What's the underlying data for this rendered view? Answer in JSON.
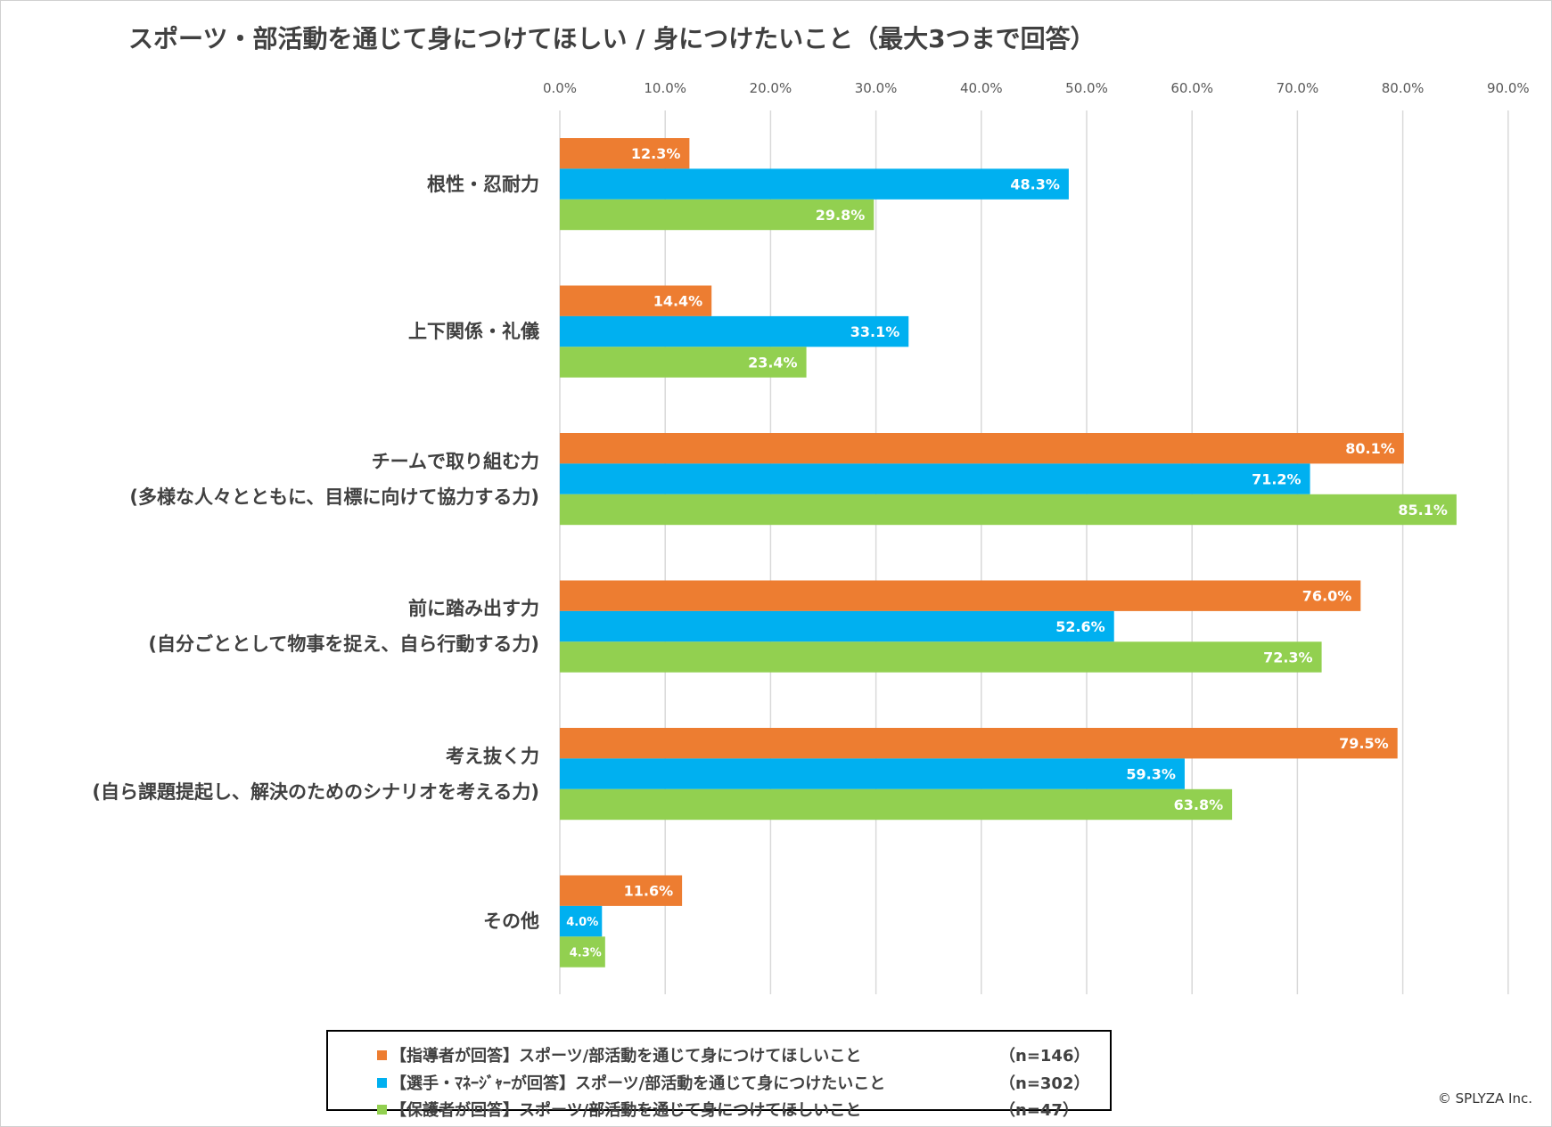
{
  "chart_data": {
    "type": "bar",
    "orientation": "horizontal",
    "title": "スポーツ・部活動を通じて身につけてほしい / 身につけたいこと（最大3つまで回答）",
    "categories": [
      [
        "根性・忍耐力"
      ],
      [
        "上下関係・礼儀"
      ],
      [
        "チームで取り組む力",
        "(多様な人々とともに、目標に向けて協力する力)"
      ],
      [
        "前に踏み出す力",
        "(自分ごととして物事を捉え、自ら行動する力)"
      ],
      [
        "考え抜く力",
        "(自ら課題提起し、解決のためのシナリオを考える力)"
      ],
      [
        "その他"
      ]
    ],
    "xlim": [
      0,
      90
    ],
    "ticks": [
      "0.0%",
      "10.0%",
      "20.0%",
      "30.0%",
      "40.0%",
      "50.0%",
      "60.0%",
      "70.0%",
      "80.0%",
      "90.0%"
    ],
    "grid": true,
    "legend_position": "bottom",
    "series": [
      {
        "name": "【指導者が回答】スポーツ/部活動を通じて身につけてほしいこと",
        "n": "（n=146）",
        "color": "#ED7D31",
        "values": [
          12.3,
          14.4,
          80.1,
          76.0,
          79.5,
          11.6
        ]
      },
      {
        "name": "【選手・ﾏﾈｰｼﾞｬｰが回答】スポーツ/部活動を通じて身につけたいこと",
        "n": "（n=302）",
        "color": "#00B0F0",
        "values": [
          48.3,
          33.1,
          71.2,
          52.6,
          59.3,
          4.0
        ]
      },
      {
        "name": "【保護者が回答】スポーツ/部活動を通じて身につけてほしいこと",
        "n": "（n=47）",
        "color": "#92D050",
        "values": [
          29.8,
          23.4,
          85.1,
          72.3,
          63.8,
          4.3
        ]
      }
    ]
  },
  "copyright": "© SPLYZA Inc."
}
